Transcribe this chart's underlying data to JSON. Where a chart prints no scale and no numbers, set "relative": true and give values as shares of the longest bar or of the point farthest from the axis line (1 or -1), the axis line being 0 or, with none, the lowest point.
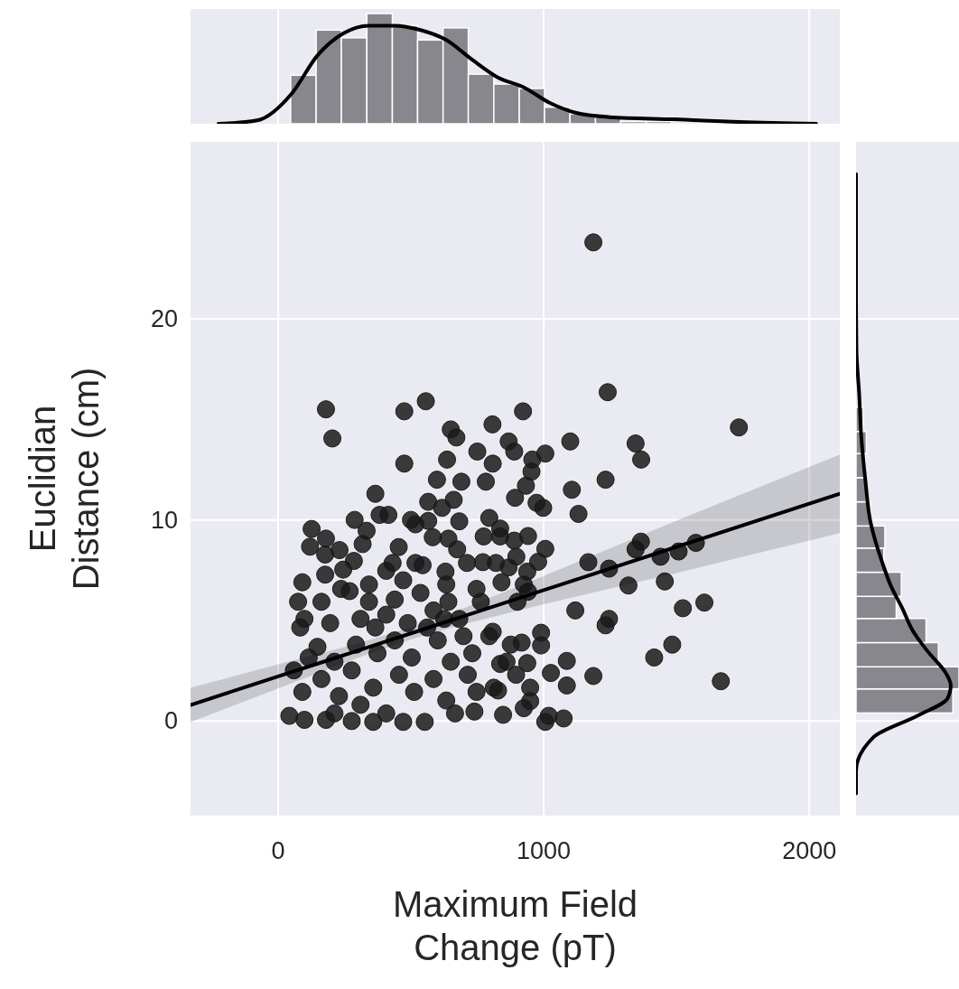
{
  "chart_data": [
    {
      "type": "scatter",
      "xlabel": "Maximum Field\nChange (pT)",
      "ylabel": "Euclidian\nDistance (cm)",
      "xlim": [
        -330,
        2115
      ],
      "ylim": [
        -4.7,
        28.8
      ],
      "xticks": [
        0,
        1000,
        2000
      ],
      "yticks": [
        0,
        10,
        20
      ],
      "grid": true,
      "series": [
        {
          "marker": "circle",
          "color": "#1a1a1a",
          "x": [
            1187,
            180,
            204,
            475,
            556,
            922,
            1241,
            1735,
            1100,
            1346,
            1367,
            1233,
            1106,
            1131,
            807,
            650,
            671,
            750,
            808,
            475,
            868,
            889,
            1006,
            957,
            636,
            598,
            690,
            782,
            954,
            933,
            892,
            973,
            998,
            661,
            565,
            617,
            366,
            382,
            415,
            288,
            126,
            180,
            120,
            333,
            318,
            177,
            231,
            285,
            245,
            454,
            500,
            565,
            682,
            795,
            836,
            836,
            774,
            941,
            889,
            1006,
            979,
            897,
            868,
            820,
            771,
            711,
            674,
            641,
            582,
            517,
            407,
            517,
            544,
            630,
            841,
            938,
            925,
            941,
            1168,
            1366,
            1346,
            1440,
            1508,
            1573,
            1246,
            1456,
            1319,
            1605,
            1524,
            1119,
            1246,
            1233,
            1484,
            1416,
            1667,
            1087,
            1187,
            1027,
            1087,
            1075,
            1006,
            1019,
            847,
            949,
            925,
            739,
            990,
            990,
            917,
            876,
            938,
            949,
            896,
            828,
            808,
            836,
            901,
            91,
            75,
            99,
            83,
            115,
            59,
            91,
            42,
            99,
            180,
            177,
            237,
            163,
            196,
            148,
            212,
            163,
            229,
            277,
            269,
            342,
            342,
            310,
            366,
            293,
            374,
            277,
            358,
            310,
            358,
            431,
            471,
            439,
            407,
            488,
            439,
            503,
            455,
            512,
            471,
            536,
            585,
            561,
            633,
            641,
            625,
            601,
            650,
            585,
            633,
            552,
            682,
            698,
            731,
            714,
            747,
            763,
            747,
            666,
            407,
            212,
            795,
            860,
            812
          ],
          "values": [
            23.8,
            15.5,
            14.05,
            15.4,
            15.9,
            15.4,
            16.35,
            14.6,
            13.9,
            13.8,
            13.0,
            12.0,
            11.5,
            10.3,
            14.75,
            14.5,
            14.1,
            13.4,
            12.8,
            12.8,
            13.9,
            13.4,
            13.3,
            13.0,
            13.0,
            12.0,
            11.9,
            11.9,
            12.4,
            11.7,
            11.1,
            10.85,
            10.6,
            11.0,
            10.9,
            10.6,
            11.3,
            10.25,
            10.25,
            10.0,
            9.55,
            9.07,
            8.67,
            9.46,
            8.8,
            8.28,
            8.5,
            7.96,
            7.53,
            8.65,
            10.0,
            9.95,
            9.93,
            10.1,
            9.57,
            9.18,
            9.18,
            9.2,
            8.97,
            8.56,
            7.92,
            8.17,
            7.64,
            7.86,
            7.9,
            7.86,
            8.54,
            9.07,
            9.14,
            9.78,
            7.47,
            7.86,
            7.75,
            7.43,
            6.9,
            7.43,
            6.79,
            6.43,
            7.9,
            8.92,
            8.54,
            8.17,
            8.43,
            8.86,
            7.58,
            6.94,
            6.74,
            5.89,
            5.61,
            5.5,
            5.08,
            4.76,
            3.8,
            3.16,
            1.98,
            2.99,
            2.24,
            2.39,
            1.77,
            0.13,
            -0.04,
            0.26,
            0.31,
            0.99,
            0.64,
            0.47,
            4.39,
            3.76,
            3.9,
            3.8,
            2.88,
            1.66,
            2.3,
            1.52,
            4.44,
            2.84,
            5.93,
            6.9,
            5.93,
            5.08,
            4.65,
            3.16,
            2.52,
            1.45,
            0.26,
            0.06,
            0.06,
            7.28,
            6.57,
            5.93,
            4.87,
            3.69,
            2.95,
            2.09,
            1.24,
            0,
            6.46,
            6.79,
            5.93,
            5.08,
            4.65,
            3.8,
            3.37,
            2.52,
            1.66,
            0.81,
            -0.04,
            7.86,
            7.0,
            6.04,
            5.29,
            4.87,
            4.01,
            3.16,
            2.3,
            1.45,
            -0.04,
            6.37,
            5.5,
            4.65,
            6.79,
            5.93,
            5.08,
            4.01,
            2.95,
            2.09,
            1.02,
            -0.04,
            5.08,
            4.22,
            3.37,
            2.3,
            1.45,
            5.93,
            6.57,
            0.38,
            0.38,
            0.38,
            4.22,
            2.95,
            1.66
          ]
        },
        {
          "type": "line",
          "color": "#000000",
          "x": [
            -330,
            0,
            300,
            500,
            700,
            1000,
            1500,
            2115
          ],
          "values": [
            0.8,
            2.22,
            3.5,
            4.36,
            5.22,
            6.51,
            8.66,
            11.3
          ],
          "lower": [
            -0.05,
            1.62,
            3.15,
            4.06,
            4.82,
            5.81,
            7.36,
            9.35
          ],
          "upper": [
            1.65,
            2.82,
            3.85,
            4.66,
            5.62,
            7.21,
            9.96,
            13.25
          ]
        }
      ]
    },
    {
      "type": "histogram",
      "relative": true,
      "bins": [
        47,
        143,
        238,
        334,
        430,
        525,
        621,
        716,
        812,
        908,
        1003,
        1099,
        1195,
        1290,
        1386,
        1481,
        1577,
        1673
      ],
      "xlim": [
        -330,
        2115
      ],
      "xticks": [
        0,
        1000,
        2000
      ],
      "grid": "x",
      "tick_labels": false,
      "series": [
        {
          "color": "#88878e",
          "values": [
            0.44,
            0.85,
            0.78,
            1,
            0.89,
            0.76,
            0.87,
            0.45,
            0.36,
            0.32,
            0.15,
            0.09,
            0.06,
            0.02,
            0.02,
            null,
            0.005
          ]
        },
        {
          "type": "line",
          "color": "#000000",
          "x": [
            -225,
            -79,
            50,
            148,
            245,
            342,
            439,
            536,
            633,
            731,
            827,
            925,
            1022,
            1119,
            1248,
            1492,
            1735,
            2026
          ],
          "values": [
            0,
            0.03,
            0.27,
            0.62,
            0.82,
            0.89,
            0.89,
            0.85,
            0.76,
            0.58,
            0.42,
            0.33,
            0.19,
            0.1,
            0.06,
            0.04,
            0.016,
            0
          ]
        }
      ]
    },
    {
      "type": "histogram",
      "orientation": "horizontal",
      "relative": true,
      "bins": [
        0.4,
        1.6,
        2.7,
        3.9,
        5.1,
        6.2,
        7.4,
        8.6,
        9.7,
        10.9,
        12.1,
        13.3,
        14.4,
        15.6
      ],
      "ylim": [
        -4.7,
        28.8
      ],
      "yticks": [
        0,
        10,
        20
      ],
      "grid": "y",
      "tick_labels": false,
      "series": [
        {
          "color": "#88878e",
          "values": [
            0.94,
            1,
            0.8,
            0.68,
            0.39,
            0.44,
            0.27,
            0.28,
            0.14,
            0.1,
            0.09,
            0.1,
            0.07
          ]
        },
        {
          "type": "line",
          "color": "#000000",
          "x": [
            -3.6,
            -2.5,
            -0.8,
            0.27,
            1.13,
            1.77,
            2.4,
            3.5,
            4.5,
            5.6,
            6.7,
            7.8,
            9.9,
            12.0,
            14.2,
            16.3,
            18.4,
            20.6,
            27.2
          ],
          "values": [
            0,
            0,
            0.17,
            0.6,
            0.89,
            0.92,
            0.87,
            0.69,
            0.55,
            0.45,
            0.34,
            0.26,
            0.14,
            0.09,
            0.05,
            0.03,
            0.004,
            0,
            0
          ]
        }
      ]
    }
  ]
}
